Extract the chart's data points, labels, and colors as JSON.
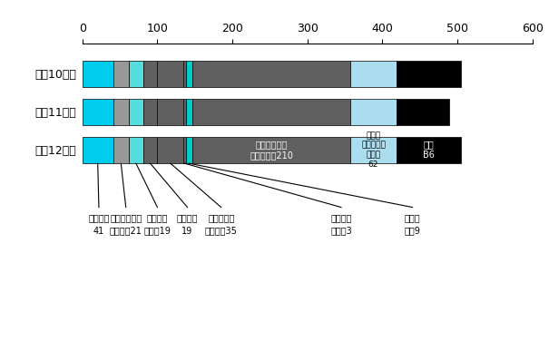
{
  "years": [
    "平成10年度",
    "平成11年度",
    "平成12年度"
  ],
  "segments_h10": [
    41,
    21,
    19,
    19,
    35,
    3,
    9,
    210,
    62,
    86
  ],
  "segments_h11": [
    41,
    21,
    19,
    19,
    35,
    3,
    9,
    210,
    62,
    70
  ],
  "segments_h12": [
    41,
    21,
    19,
    19,
    35,
    3,
    9,
    210,
    62,
    86
  ],
  "bar_colors": [
    "#00CCEE",
    "#999999",
    "#55DDDD",
    "#606060",
    "#606060",
    "#606060",
    "#00CCCC",
    "#606060",
    "#AADDEE",
    "#000000"
  ],
  "xlim": [
    0,
    600
  ],
  "xticks": [
    0,
    100,
    200,
    300,
    400,
    500,
    600
  ],
  "bar_height": 0.7,
  "annotation_service": "サービス業・\nその他　　210",
  "annotation_kojin": "個人住\n宅・アパー\nト・寮\n62",
  "annotation_fumei": "不明\nB6",
  "legend_texts": [
    "畜産農業\n41",
    "飼料・肥料製\n造工場　21",
    "食料製造\n工場　19",
    "化学工場\n19",
    "その他の製\n造工場　35",
    "建設作業\n現場　3",
    "下水・\n用水9"
  ]
}
